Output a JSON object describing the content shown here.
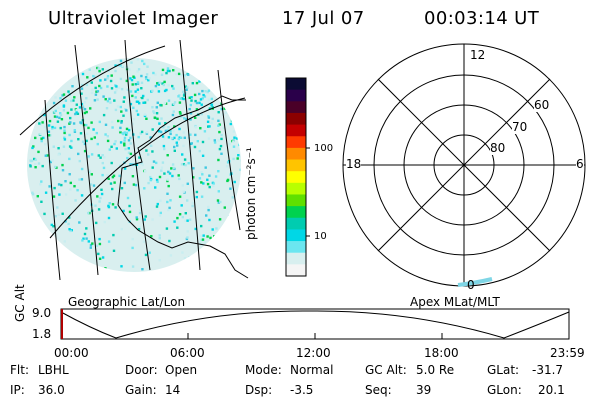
{
  "header": {
    "instrument": "Ultraviolet Imager",
    "date": "17 Jul 07",
    "time": "00:03:14 UT"
  },
  "colorbar": {
    "unit_label": "photon cm⁻²s⁻¹",
    "tick_labels": [
      "100",
      "10"
    ],
    "colors": [
      "#0b0b33",
      "#2a004a",
      "#4a0028",
      "#8b0000",
      "#c40000",
      "#ff3b00",
      "#ff8a00",
      "#ffc400",
      "#ffff00",
      "#b8ff00",
      "#5fe000",
      "#00d24e",
      "#00ccb0",
      "#00d7e6",
      "#6be6f0",
      "#d8efef",
      "#f5f5f5"
    ]
  },
  "polar_plot": {
    "labels": {
      "top": "12",
      "left": "18",
      "right": "6",
      "bottom": "0"
    },
    "lat_labels": [
      "60",
      "70",
      "80"
    ]
  },
  "labels": {
    "left_projection": "Geographic Lat/Lon",
    "right_projection": "Apex MLat/MLT"
  },
  "altitude_plot": {
    "axis_label": "GC Alt",
    "y_ticks": [
      "9.0",
      "1.8"
    ],
    "x_ticks": [
      "00:00",
      "06:00",
      "12:00",
      "18:00",
      "23:59"
    ]
  },
  "info": {
    "flt_label": "Flt:",
    "flt_value": "LBHL",
    "door_label": "Door:",
    "door_value": "Open",
    "mode_label": "Mode:",
    "mode_value": "Normal",
    "gc_alt_label": "GC Alt:",
    "gc_alt_value": "5.0 Re",
    "glat_label": "GLat:",
    "glat_value": "-31.7",
    "ip_label": "IP:",
    "ip_value": "36.0",
    "gain_label": "Gain:",
    "gain_value": "14",
    "dsp_label": "Dsp:",
    "dsp_value": "-3.5",
    "seq_label": "Seq:",
    "seq_value": "39",
    "glon_label": "GLon:",
    "glon_value": "20.1"
  }
}
